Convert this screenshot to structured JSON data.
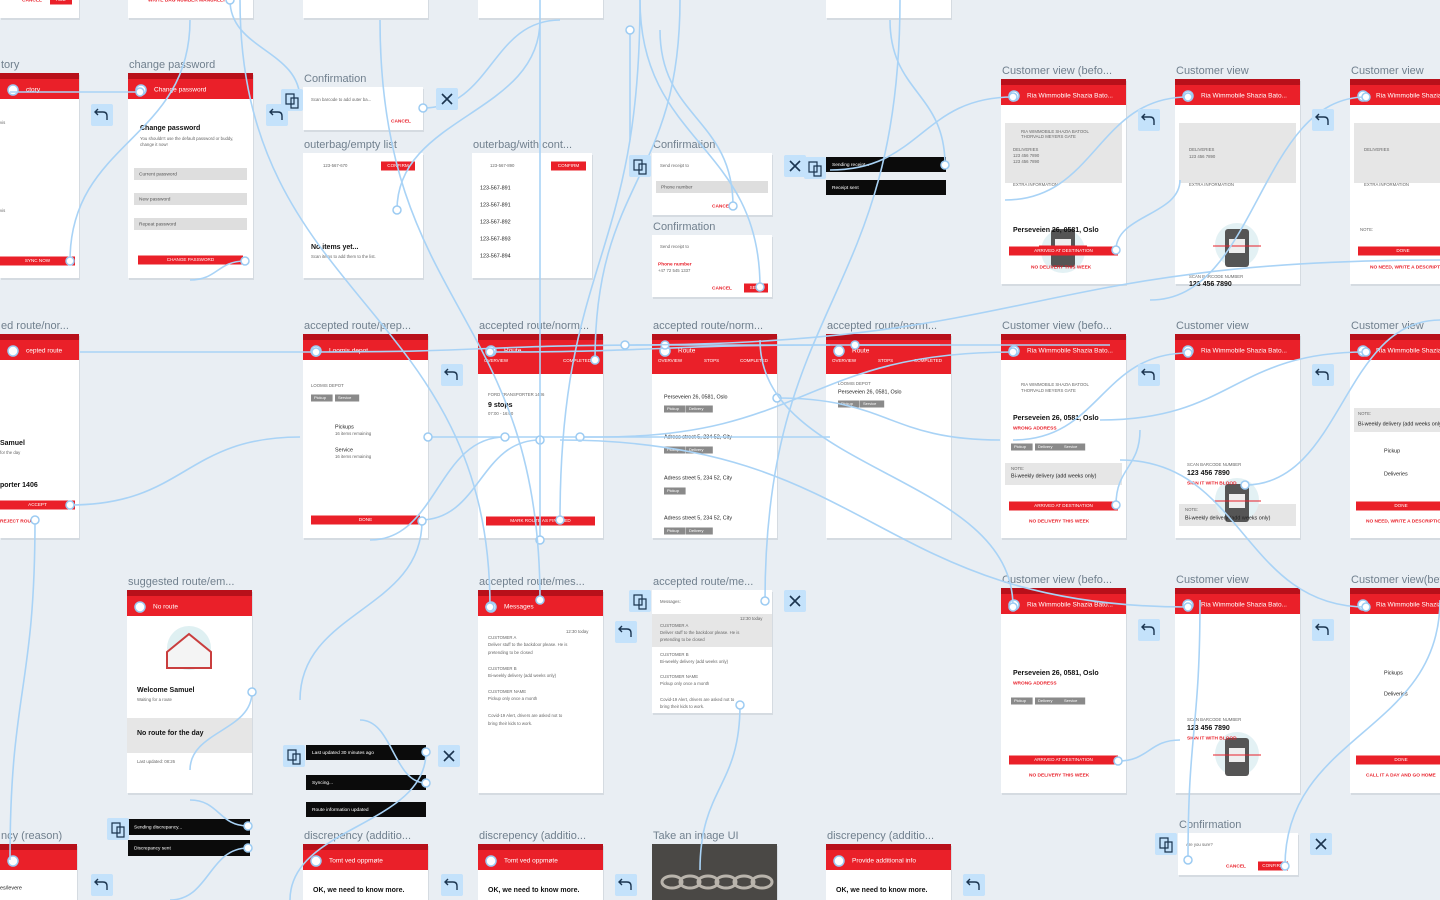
{
  "frames": [
    {
      "items": [
        "CANCEL",
        "ADD"
      ]
    },
    {
      "items": [
        "WRITE BAG NUMBER MANUALLY"
      ]
    },
    {},
    {},
    {},
    {
      "title": "tory",
      "header": "ctory",
      "items": [
        "vis",
        "vis",
        "SYNC NOW"
      ]
    },
    {
      "title": "change password",
      "header": "Change password",
      "items": [
        "Change password",
        "You shouldn't use the default password or buddy,",
        "change it now!",
        "Current password",
        "New password",
        "Repeat password",
        "CHANGE PASSWORD"
      ]
    },
    {
      "title": "Confirmation",
      "items": [
        "Scan barcode to add outer ba...",
        "CANCEL"
      ]
    },
    {
      "title": "outerbag/empty list",
      "items": [
        "123-567-670",
        "CONFIRM",
        "No items yet...",
        "Scan items to add them to the list."
      ]
    },
    {
      "title": "outerbag/with cont...",
      "items": [
        "123-567-890",
        "CONFIRM",
        "123-567-891",
        "123-567-891",
        "123-567-892",
        "123-567-893",
        "123-567-894"
      ]
    },
    {
      "title": "Confirmation",
      "items": [
        "Send receipt to",
        "Phone number",
        "CANCEL"
      ]
    },
    {
      "title": "Confirmation",
      "items": [
        "Send receipt to",
        "Phone number",
        "+47 72 545 1337",
        "CANCEL",
        "SEND"
      ]
    },
    {
      "title": "Customer view (befo...",
      "header": "Ria Wimmobile Shazia Bato...",
      "items": [
        "RIA WIMMOBILE SHAZIA BATOOL",
        "THORVALD MEYERS GATE",
        "DELIVERIES",
        "123 456 7890",
        "123 456 7890",
        "EXTRA INFORMATION",
        "Perseveien 26, 0581, Oslo",
        "ARRIVED AT DESTINATION",
        "NO DELIVERY THIS WEEK"
      ]
    },
    {
      "title": "Customer view",
      "header": "Ria Wimmobile Shazia Bato...",
      "items": [
        "DELIVERIES",
        "123 456 7890",
        "EXTRA INFORMATION",
        "SCAN BARCODE NUMBER",
        "123 456 7890"
      ]
    },
    {
      "title": "Customer view",
      "header": "Ria Wimmobile Shazia Bato...",
      "items": [
        "DELIVERIES",
        "EXTRA INFORMATION",
        "NOTE:",
        "DONE",
        "NO NEED, WRITE A DESCRIPTION"
      ]
    },
    {
      "title": "ed route/nor...",
      "header": "cepted route",
      "items": [
        "Samuel",
        "for the day",
        "porter 1406",
        "ACCEPT",
        "REJECT ROUTE"
      ]
    },
    {
      "title": "accepted route/prep...",
      "header": "Loomis depot",
      "items": [
        "LOOMIS DEPOT",
        "Pickup",
        "Service",
        "Pickups",
        "16 items remaining",
        "Service",
        "16 items remaining",
        "DONE"
      ]
    },
    {
      "title": "accepted route/norm...",
      "header": "Route",
      "items": [
        "OVERVIEW",
        "COMPLETED",
        "FORD TRANSPORTER 1406",
        "9 stops",
        "07:00 - 16:00",
        "MARK ROUTE AS FINISHED"
      ]
    },
    {
      "title": "accepted route/norm...",
      "header": "Route",
      "items": [
        "OVERVIEW",
        "STOPS",
        "COMPLETED",
        "Perseveien 26, 0581, Oslo",
        "Pickup",
        "Delivery",
        "Adress street 5, 234 52, City",
        "Pickup",
        "Delivery",
        "Adress street 5, 234 52, City",
        "Pickup",
        "Adress street 5, 234 52, City",
        "Pickup",
        "Delivery"
      ]
    },
    {
      "title": "accepted route/norm...",
      "header": "Route",
      "items": [
        "OVERVIEW",
        "STOPS",
        "COMPLETED",
        "LOOMIS DEPOT",
        "Perseveien 26, 0581, Oslo",
        "Pickup",
        "Service"
      ]
    },
    {
      "title": "Customer view (befo...",
      "header": "Ria Wimmobile Shazia Bato...",
      "items": [
        "RIA WIMMOBILE SHAZIA BATOOL",
        "THORVALD MEYERS GATE",
        "Perseveien 26, 0581, Oslo",
        "WRONG ADDRESS",
        "Pickup",
        "Delivery",
        "Service",
        "NOTE:",
        "Bi-weekly delivery (add weeks only)",
        "ARRIVED AT DESTINATION",
        "NO DELIVERY THIS WEEK"
      ]
    },
    {
      "title": "Customer view",
      "header": "Ria Wimmobile Shazia Bato...",
      "items": [
        "SCAN BARCODE NUMBER",
        "123 456 7890",
        "SIGN IT WITH BLOOD",
        "NOTE:",
        "Bi-weekly delivery (add weeks only)"
      ]
    },
    {
      "title": "Customer view",
      "header": "Ria Wimmobile Shazia Bato...",
      "items": [
        "NOTE:",
        "Bi-weekly delivery (add weeks only)",
        "Pickup",
        "Deliveries",
        "DONE",
        "NO NEED, WRITE A DESCRIPTION"
      ]
    },
    {
      "title": "suggested route/em...",
      "header": "No route",
      "items": [
        "Welcome Samuel",
        "Waiting for a route",
        "No route for the day",
        "Last updated: 08:26"
      ]
    },
    {
      "title": "accepted route/mes...",
      "header": "Messages",
      "items": [
        "12:30 today",
        "CUSTOMER A",
        "Deliver stuff to the backdoor please. He is",
        "pretending to be closed",
        "CUSTOMER B",
        "Bi-weekly delivery (add weeks only)",
        "CUSTOMER NAME",
        "Pickup only once a month",
        "Covid-19 Alert, drivers are asked not to",
        "bring their kids to work."
      ]
    },
    {
      "title": "accepted route/me...",
      "items": [
        "Messages:",
        "12:30 today",
        "CUSTOMER A",
        "Deliver stuff to the backdoor please. He is",
        "pretending to be closed",
        "CUSTOMER B",
        "Bi-weekly delivery (add weeks only)",
        "CUSTOMER NAME",
        "Pickup only once a month",
        "Covid-19 Alert, drivers are asked not to",
        "bring their kids to work."
      ]
    },
    {
      "title": "Customer view (befo...",
      "header": "Ria Wimmobile Shazia Bato...",
      "items": [
        "Perseveien 26, 0581, Oslo",
        "WRONG ADDRESS",
        "Pickup",
        "Delivery",
        "Service",
        "ARRIVED AT DESTINATION",
        "NO DELIVERY THIS WEEK"
      ]
    },
    {
      "title": "Customer view",
      "header": "Ria Wimmobile Shazia Bato...",
      "items": [
        "SCAN BARCODE NUMBER",
        "123 456 7890",
        "SIGN IT WITH BLOOD"
      ]
    },
    {
      "title": "Customer view(befo...",
      "header": "Ria Wimmobile Shazia Bato...",
      "items": [
        "Pickups",
        "Deliveries",
        "DONE",
        "CALL IT A DAY AND GO HOME"
      ]
    },
    {
      "title": "Confirmation",
      "items": [
        "Are you sure?",
        "CANCEL",
        "CONFIRM"
      ]
    },
    {
      "title": "ncy (reason)",
      "items": [
        "es/levere"
      ]
    },
    {
      "title": "discrepency (additio...",
      "header": "Tomt ved oppmøte",
      "items": [
        "OK, we need to know more."
      ]
    },
    {
      "title": "discrepency (additio...",
      "header": "Tomt ved oppmøte",
      "items": [
        "OK, we need to know more."
      ]
    },
    {
      "title": "Take an image UI"
    },
    {
      "title": "discrepency (additio...",
      "header": "Provide additional info",
      "items": [
        "OK, we need to know more."
      ]
    }
  ],
  "toasts": [
    "Sending receipt...",
    "Receipt sent",
    "Last updated 30 minutes ago",
    "Syncing...",
    "Route information updated",
    "Sending discrepancy...",
    "Discrepancy sent"
  ]
}
